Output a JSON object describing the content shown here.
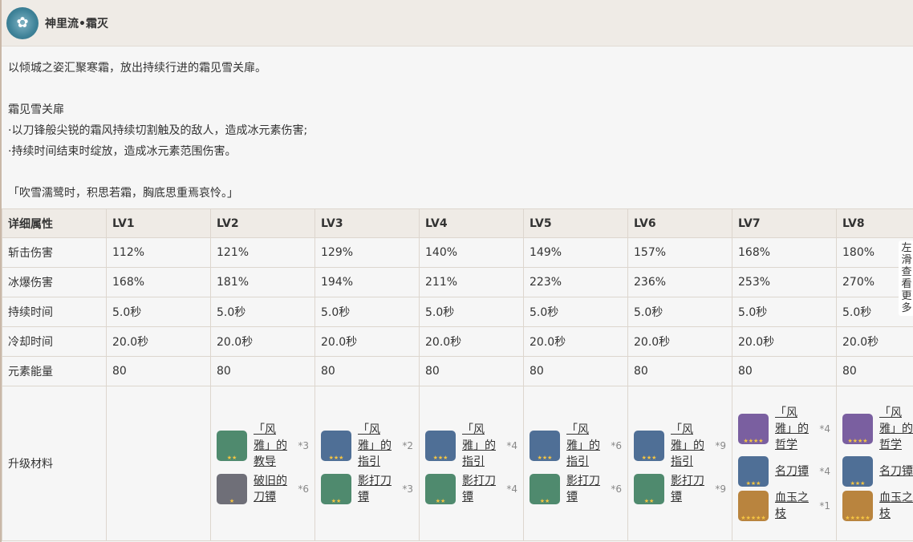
{
  "header": {
    "title": "神里流•霜灭",
    "icon": "snowflake-flower-icon"
  },
  "description": [
    "以倾城之姿汇聚寒霜，放出持续行进的霜见雪关扉。",
    "",
    "霜见雪关扉",
    "·以刀锋般尖锐的霜风持续切割触及的敌人，造成冰元素伤害;",
    "·持续时间结束时绽放，造成冰元素范围伤害。",
    "",
    "「吹雪濡鹭时，积思若霜，胸底思重焉哀怜。」"
  ],
  "table": {
    "headers": [
      "详细属性",
      "LV1",
      "LV2",
      "LV3",
      "LV4",
      "LV5",
      "LV6",
      "LV7",
      "LV8"
    ],
    "rows": [
      [
        "斩击伤害",
        "112%",
        "121%",
        "129%",
        "140%",
        "149%",
        "157%",
        "168%",
        "180%"
      ],
      [
        "冰爆伤害",
        "168%",
        "181%",
        "194%",
        "211%",
        "223%",
        "236%",
        "253%",
        "270%"
      ],
      [
        "持续时间",
        "5.0秒",
        "5.0秒",
        "5.0秒",
        "5.0秒",
        "5.0秒",
        "5.0秒",
        "5.0秒",
        "5.0秒"
      ],
      [
        "冷却时间",
        "20.0秒",
        "20.0秒",
        "20.0秒",
        "20.0秒",
        "20.0秒",
        "20.0秒",
        "20.0秒",
        "20.0秒"
      ],
      [
        "元素能量",
        "80",
        "80",
        "80",
        "80",
        "80",
        "80",
        "80",
        "80"
      ]
    ],
    "materials_label": "升级材料",
    "materials": [
      [],
      [
        {
          "name": "「风雅」的教导",
          "count": "*3",
          "stars": "★★",
          "color": "#4f8a6e"
        },
        {
          "name": "破旧的刀镡",
          "count": "*6",
          "stars": "★",
          "color": "#6f6f78"
        }
      ],
      [
        {
          "name": "「风雅」的指引",
          "count": "*2",
          "stars": "★★★",
          "color": "#4f6f96"
        },
        {
          "name": "影打刀镡",
          "count": "*3",
          "stars": "★★",
          "color": "#4f8a6e"
        }
      ],
      [
        {
          "name": "「风雅」的指引",
          "count": "*4",
          "stars": "★★★",
          "color": "#4f6f96"
        },
        {
          "name": "影打刀镡",
          "count": "*4",
          "stars": "★★",
          "color": "#4f8a6e"
        }
      ],
      [
        {
          "name": "「风雅」的指引",
          "count": "*6",
          "stars": "★★★",
          "color": "#4f6f96"
        },
        {
          "name": "影打刀镡",
          "count": "*6",
          "stars": "★★",
          "color": "#4f8a6e"
        }
      ],
      [
        {
          "name": "「风雅」的指引",
          "count": "*9",
          "stars": "★★★",
          "color": "#4f6f96"
        },
        {
          "name": "影打刀镡",
          "count": "*9",
          "stars": "★★",
          "color": "#4f8a6e"
        }
      ],
      [
        {
          "name": "「风雅」的哲学",
          "count": "*4",
          "stars": "★★★★",
          "color": "#7a5fa0"
        },
        {
          "name": "名刀镡",
          "count": "*4",
          "stars": "★★★",
          "color": "#4f6f96"
        },
        {
          "name": "血玉之枝",
          "count": "*1",
          "stars": "★★★★★",
          "color": "#b9843e"
        }
      ],
      [
        {
          "name": "「风雅」的哲学",
          "count": "",
          "stars": "★★★★",
          "color": "#7a5fa0"
        },
        {
          "name": "名刀镡",
          "count": "",
          "stars": "★★★",
          "color": "#4f6f96"
        },
        {
          "name": "血玉之枝",
          "count": "",
          "stars": "★★★★★",
          "color": "#b9843e"
        }
      ]
    ]
  },
  "scroll_hint": "左滑查看更多"
}
